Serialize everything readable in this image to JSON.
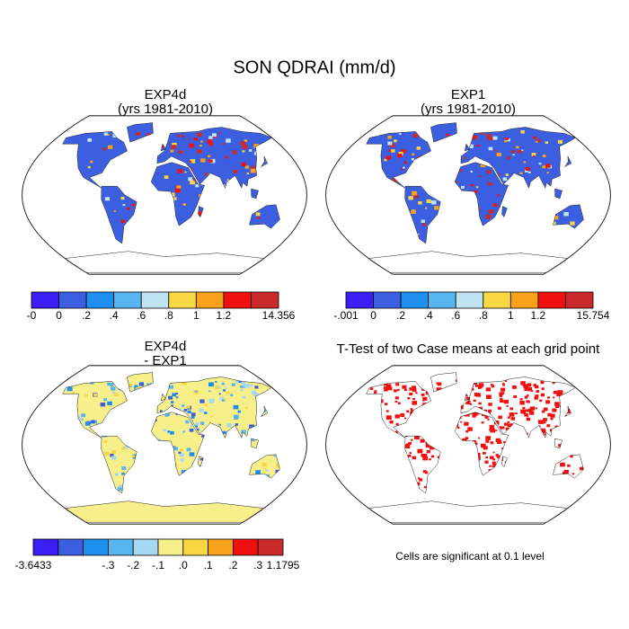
{
  "title": "SON QDRAI (mm/d)",
  "panels": [
    {
      "title": [
        "EXP4d",
        "(yrs 1981-2010)"
      ],
      "colorbar": {
        "colors": [
          "#3a1ef5",
          "#3b5fe0",
          "#1f8fef",
          "#57b5ef",
          "#bfe3f0",
          "#f7d742",
          "#f7a21a",
          "#f11010",
          "#cc2a2a"
        ],
        "labels": [
          "-0",
          "0",
          ".2",
          ".4",
          ".6",
          ".8",
          "1",
          "1.2",
          null,
          "14.356"
        ]
      }
    },
    {
      "title": [
        "EXP1",
        "(yrs 1981-2010)"
      ],
      "colorbar": {
        "colors": [
          "#3a1ef5",
          "#3b5fe0",
          "#1f8fef",
          "#57b5ef",
          "#bfe3f0",
          "#f7d742",
          "#f7a21a",
          "#f11010",
          "#cc2a2a"
        ],
        "labels": [
          "-.001",
          "0",
          ".2",
          ".4",
          ".6",
          ".8",
          "1",
          "1.2",
          null,
          "15.754"
        ]
      }
    },
    {
      "title": [
        "EXP4d",
        "- EXP1"
      ],
      "colorbar": {
        "colors": [
          "#3a1ef5",
          "#3b5fe0",
          "#1f8fef",
          "#57b5ef",
          "#a7d8f3",
          "#f7ef8a",
          "#f7d742",
          "#f7a21a",
          "#f11010",
          "#cc2a2a"
        ],
        "labels": [
          "-3.6433",
          null,
          null,
          "-.3",
          "-.2",
          "-.1",
          ".0",
          ".1",
          ".2",
          ".3",
          "1.1795"
        ]
      }
    },
    {
      "title": [
        "T-Test of two Case means at each grid point"
      ],
      "note": "Cells are significant at 0.1 level"
    }
  ]
}
